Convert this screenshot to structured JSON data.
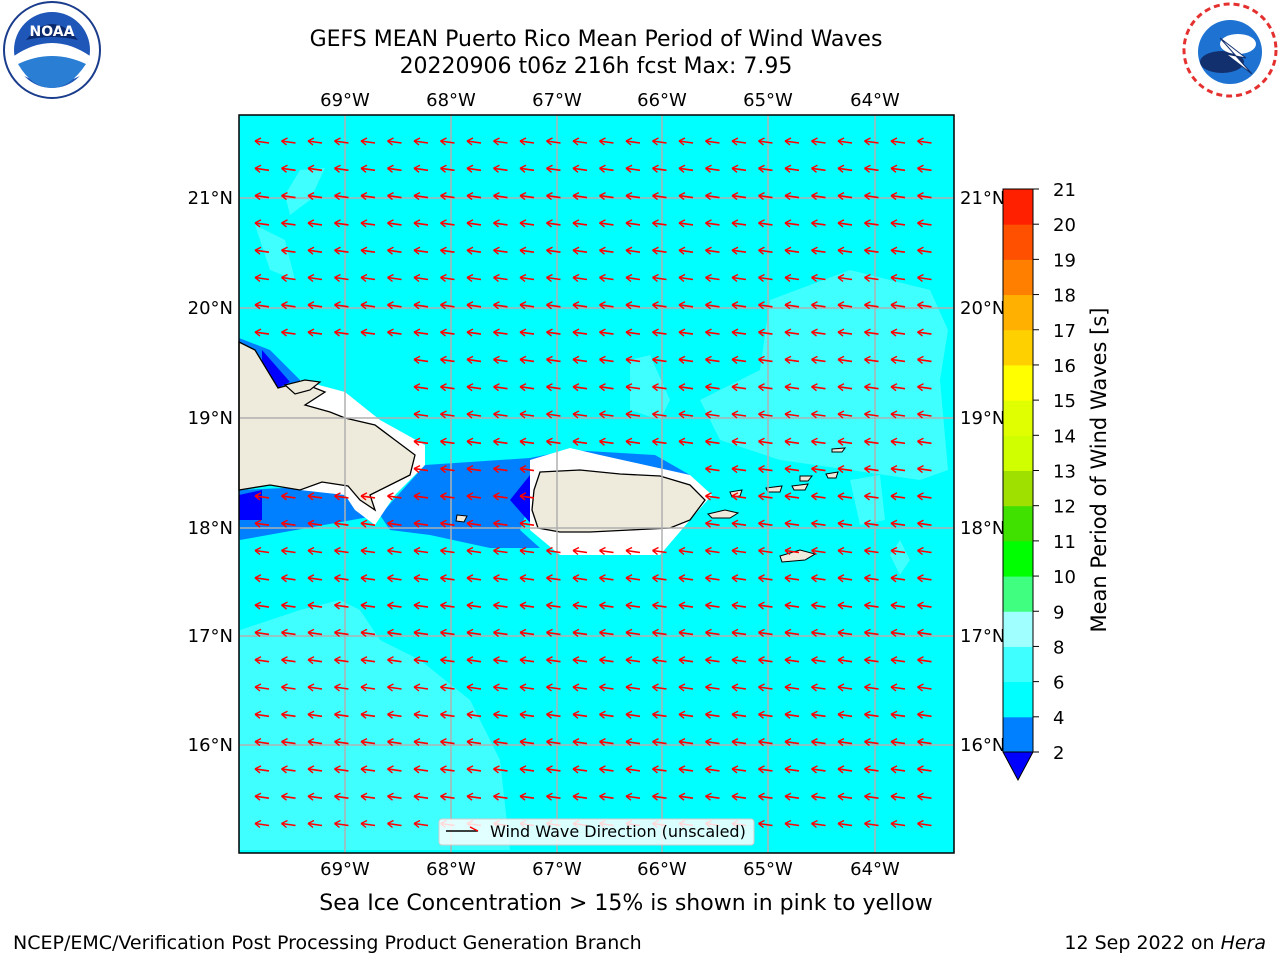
{
  "header": {
    "title_line1": "GEFS MEAN Puerto Rico Mean Period of Wind Waves",
    "title_line2": "20220906 t06z 216h fcst   Max: 7.95"
  },
  "logos": {
    "left": {
      "icon": "noaa-logo",
      "text": "NOAA"
    },
    "right": {
      "icon": "nws-logo",
      "text": "NATIONAL WEATHER SERVICE"
    }
  },
  "map": {
    "lon_labels": [
      "69°W",
      "68°W",
      "67°W",
      "66°W",
      "65°W",
      "64°W"
    ],
    "lat_labels": [
      "21°N",
      "20°N",
      "19°N",
      "18°N",
      "17°N",
      "16°N"
    ],
    "legend_label": "Wind Wave Direction (unscaled)",
    "arrow_color": "#ff0000",
    "ocean_color": "#00ffff",
    "land_color": "#efebdc"
  },
  "colorbar": {
    "label": "Mean Period of Wind Waves [s]",
    "ticks": [
      "2",
      "4",
      "6",
      "8",
      "9",
      "10",
      "11",
      "12",
      "13",
      "14",
      "15",
      "16",
      "17",
      "18",
      "19",
      "20",
      "21"
    ],
    "colors": [
      "#0080ff",
      "#00ffff",
      "#40ffff",
      "#a0ffff",
      "#40ff80",
      "#00ff00",
      "#40e000",
      "#a0e000",
      "#d0ff00",
      "#e0ff00",
      "#ffff00",
      "#ffd000",
      "#ffb000",
      "#ff8000",
      "#ff5000",
      "#ff2000"
    ],
    "under_color": "#0000ff"
  },
  "notes": {
    "sea_ice": "Sea Ice Concentration > 15% is shown in pink to yellow"
  },
  "footer": {
    "left": "NCEP/EMC/Verification Post Processing Product Generation Branch",
    "right_date": "12 Sep 2022 on ",
    "right_host": "Hera"
  }
}
